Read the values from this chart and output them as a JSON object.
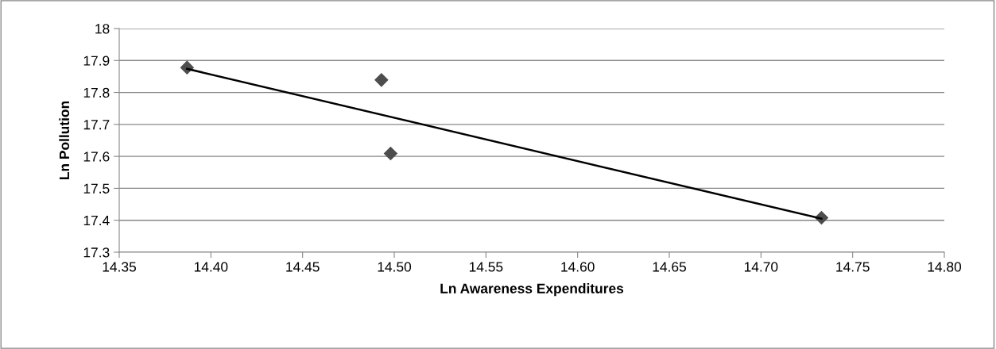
{
  "chart_data": {
    "type": "scatter",
    "xlabel": "Ln Awareness Expenditures",
    "ylabel": "Ln Pollution",
    "xlim": [
      14.35,
      14.8
    ],
    "xticks": [
      {
        "value": 14.35,
        "label": "14.35"
      },
      {
        "value": 14.4,
        "label": "14.40"
      },
      {
        "value": 14.45,
        "label": "14.45"
      },
      {
        "value": 14.5,
        "label": "14.50"
      },
      {
        "value": 14.55,
        "label": "14.55"
      },
      {
        "value": 14.6,
        "label": "14.60"
      },
      {
        "value": 14.65,
        "label": "14.65"
      },
      {
        "value": 14.7,
        "label": "14.70"
      },
      {
        "value": 14.75,
        "label": "14.75"
      },
      {
        "value": 14.8,
        "label": "14.80"
      }
    ],
    "ylim": [
      17.3,
      18
    ],
    "yticks": [
      17.3,
      17.4,
      17.5,
      17.6,
      17.7,
      17.8,
      17.9,
      18
    ],
    "grid": "y",
    "series": [
      {
        "color": "#4d4d4d",
        "marker": "diamond",
        "x": [
          14.387,
          14.493,
          14.498,
          14.733
        ],
        "values": [
          17.878,
          17.839,
          17.609,
          17.408
        ]
      },
      {
        "type": "line",
        "color": "#000000",
        "marker": "none",
        "line_style": "solid",
        "x": [
          14.387,
          14.733
        ],
        "values": [
          17.874,
          17.405
        ]
      }
    ]
  }
}
